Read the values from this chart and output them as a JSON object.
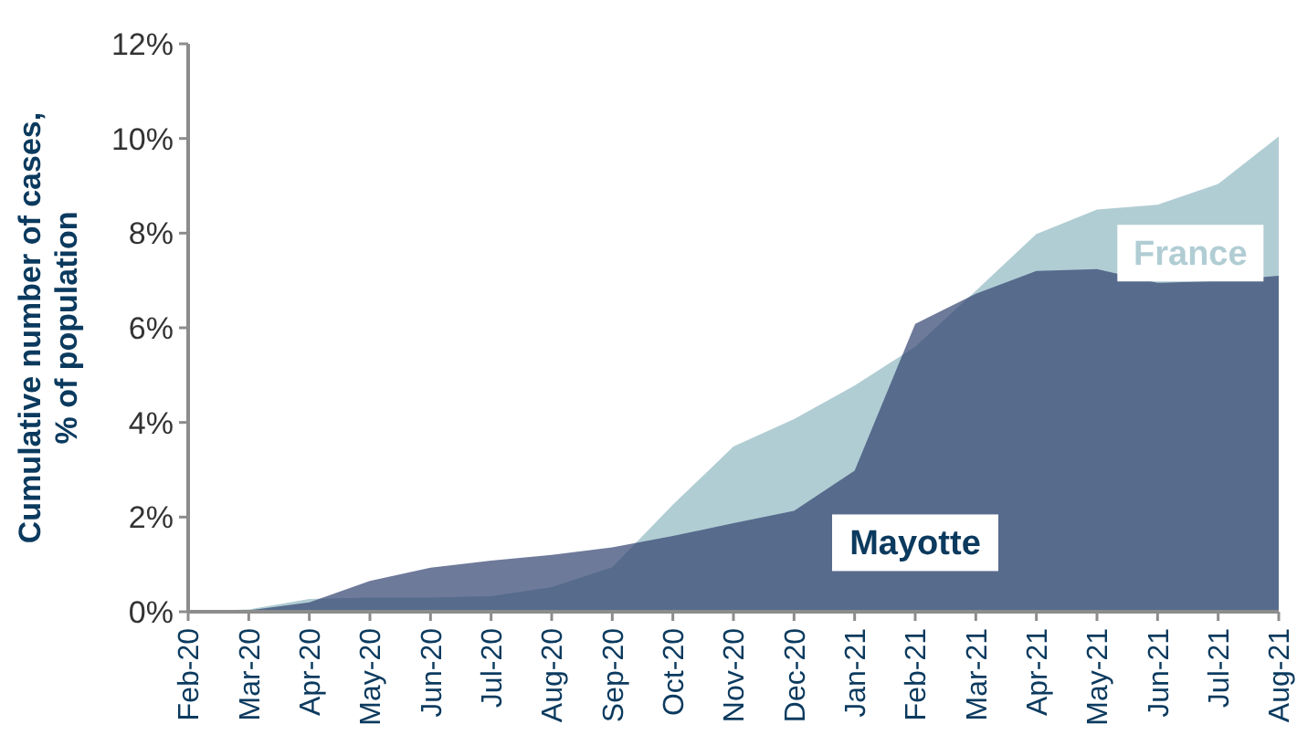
{
  "chart_data": {
    "type": "area",
    "ylabel": "Cumulative number of  cases,\n% of population",
    "categories": [
      "Feb-20",
      "Mar-20",
      "Apr-20",
      "May-20",
      "Jun-20",
      "Jul-20",
      "Aug-20",
      "Sep-20",
      "Oct-20",
      "Nov-20",
      "Dec-20",
      "Jan-21",
      "Feb-21",
      "Mar-21",
      "Apr-21",
      "May-21",
      "Jun-21",
      "Jul-21",
      "Aug-21"
    ],
    "series": [
      {
        "name": "France",
        "color": "#b1cdd4",
        "values": [
          0,
          0.05,
          0.27,
          0.3,
          0.3,
          0.33,
          0.52,
          0.94,
          2.26,
          3.49,
          4.07,
          4.78,
          5.6,
          6.78,
          7.98,
          8.5,
          8.6,
          9.04,
          10.04
        ]
      },
      {
        "name": "Mayotte",
        "color": "#30426f",
        "values": [
          0,
          0.03,
          0.2,
          0.65,
          0.93,
          1.08,
          1.2,
          1.36,
          1.6,
          1.87,
          2.13,
          2.98,
          6.08,
          6.72,
          7.2,
          7.24,
          6.95,
          6.99,
          7.1
        ]
      }
    ],
    "ylim": [
      0,
      12
    ],
    "yticks": [
      {
        "value": 0,
        "label": "0%"
      },
      {
        "value": 2,
        "label": "2%"
      },
      {
        "value": 4,
        "label": "4%"
      },
      {
        "value": 6,
        "label": "6%"
      },
      {
        "value": 8,
        "label": "8%"
      },
      {
        "value": 10,
        "label": "10%"
      },
      {
        "value": 12,
        "label": "12%"
      }
    ],
    "grid": false
  }
}
